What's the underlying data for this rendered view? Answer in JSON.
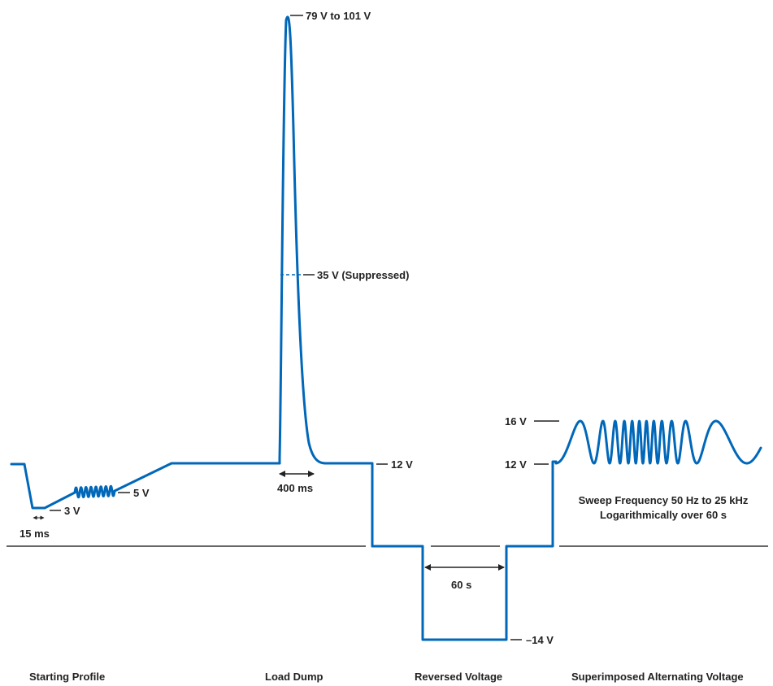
{
  "colors": {
    "waveform": "#0067b9",
    "axis": "#333333",
    "text": "#222222"
  },
  "labels": {
    "peak": "79 V to 101 V",
    "suppressed": "35 V (Suppressed)",
    "nominal_12v": "12 V",
    "start_5v": "5 V",
    "start_3v": "3 V",
    "start_15ms": "15 ms",
    "dump_400ms": "400 ms",
    "reverse_60s": "60 s",
    "reverse_neg14v": "–14 V",
    "ac_16v": "16 V",
    "ac_12v": "12 V",
    "sweep_line1": "Sweep Frequency 50 Hz to 25 kHz",
    "sweep_line2": "Logarithmically over 60 s"
  },
  "sections": {
    "starting_profile": "Starting Profile",
    "load_dump": "Load Dump",
    "reversed_voltage": "Reversed Voltage",
    "superimposed_ac": "Superimposed Alternating Voltage"
  }
}
